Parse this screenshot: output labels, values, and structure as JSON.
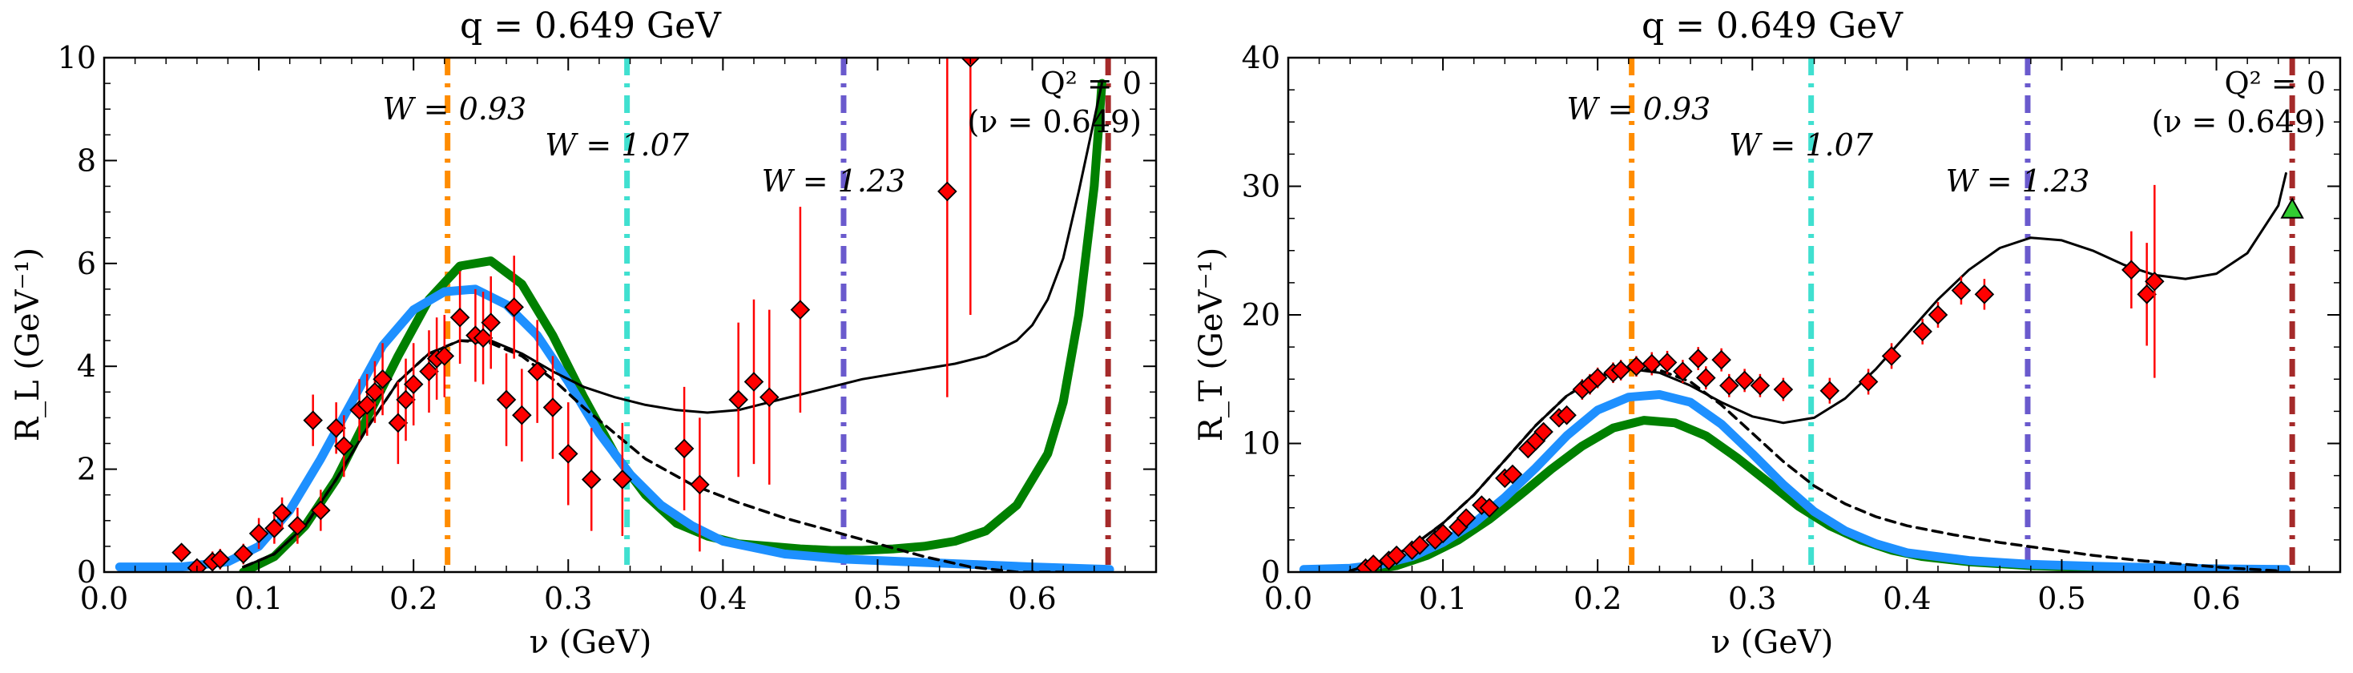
{
  "chart_data": [
    {
      "type": "line",
      "title": "q = 0.649 GeV",
      "xlabel": "ν (GeV)",
      "ylabel": "R_L (GeV⁻¹)",
      "xlim": [
        0.0,
        0.68
      ],
      "ylim": [
        0,
        10
      ],
      "xticks": [
        0.0,
        0.1,
        0.2,
        0.3,
        0.4,
        0.5,
        0.6
      ],
      "xtick_labels": [
        "0.0",
        "0.1",
        "0.2",
        "0.3",
        "0.4",
        "0.5",
        "0.6"
      ],
      "yticks": [
        0,
        2,
        4,
        6,
        8,
        10
      ],
      "ytick_labels": [
        "0",
        "2",
        "4",
        "6",
        "8",
        "10"
      ],
      "vlines": [
        {
          "x": 0.222,
          "color": "#ff8c00",
          "label": "W = 0.93",
          "label_x": 0.18,
          "label_y": 8.8
        },
        {
          "x": 0.338,
          "color": "#40e0d0",
          "label": "W = 1.07",
          "label_x": 0.285,
          "label_y": 8.1
        },
        {
          "x": 0.478,
          "color": "#6a5acd",
          "label": "W = 1.23",
          "label_x": 0.425,
          "label_y": 7.4
        },
        {
          "x": 0.649,
          "color": "#a52a2a",
          "label": "",
          "label_x": 0,
          "label_y": 0
        }
      ],
      "corner_label": [
        "Q² = 0",
        "(ν = 0.649)"
      ],
      "series": [
        {
          "style": "thin-black",
          "color": "#000000",
          "x": [
            0.09,
            0.11,
            0.13,
            0.15,
            0.17,
            0.19,
            0.21,
            0.23,
            0.25,
            0.27,
            0.29,
            0.31,
            0.33,
            0.35,
            0.37,
            0.39,
            0.41,
            0.43,
            0.45,
            0.47,
            0.49,
            0.51,
            0.53,
            0.55,
            0.57,
            0.59,
            0.6,
            0.61,
            0.62,
            0.63,
            0.64,
            0.645
          ],
          "y": [
            0.1,
            0.35,
            0.9,
            1.8,
            2.8,
            3.7,
            4.25,
            4.5,
            4.5,
            4.25,
            3.9,
            3.6,
            3.4,
            3.25,
            3.15,
            3.1,
            3.15,
            3.3,
            3.45,
            3.6,
            3.75,
            3.85,
            3.95,
            4.05,
            4.2,
            4.5,
            4.8,
            5.3,
            6.1,
            7.4,
            8.8,
            9.5
          ]
        },
        {
          "style": "dashed-black",
          "color": "#000000",
          "x": [
            0.09,
            0.11,
            0.13,
            0.15,
            0.17,
            0.19,
            0.21,
            0.23,
            0.25,
            0.27,
            0.29,
            0.31,
            0.33,
            0.35,
            0.38,
            0.41,
            0.44,
            0.47,
            0.5,
            0.53,
            0.56,
            0.59,
            0.62
          ],
          "y": [
            0.1,
            0.35,
            0.9,
            1.8,
            2.8,
            3.7,
            4.25,
            4.5,
            4.45,
            4.2,
            3.75,
            3.2,
            2.7,
            2.2,
            1.7,
            1.35,
            1.05,
            0.8,
            0.55,
            0.3,
            0.1,
            0.0,
            0.0
          ]
        },
        {
          "style": "thick-blue",
          "color": "#1e90ff",
          "x": [
            0.01,
            0.05,
            0.08,
            0.1,
            0.12,
            0.14,
            0.16,
            0.18,
            0.2,
            0.22,
            0.24,
            0.26,
            0.28,
            0.3,
            0.32,
            0.34,
            0.36,
            0.38,
            0.4,
            0.44,
            0.48,
            0.52,
            0.56,
            0.6,
            0.65
          ],
          "y": [
            0.1,
            0.1,
            0.2,
            0.5,
            1.2,
            2.2,
            3.3,
            4.4,
            5.1,
            5.45,
            5.5,
            5.2,
            4.6,
            3.7,
            2.7,
            1.9,
            1.3,
            0.9,
            0.6,
            0.35,
            0.25,
            0.2,
            0.15,
            0.1,
            0.05
          ]
        },
        {
          "style": "thick-green",
          "color": "#008000",
          "x": [
            0.09,
            0.11,
            0.13,
            0.15,
            0.17,
            0.19,
            0.21,
            0.23,
            0.25,
            0.27,
            0.29,
            0.31,
            0.33,
            0.35,
            0.37,
            0.39,
            0.41,
            0.43,
            0.45,
            0.47,
            0.49,
            0.51,
            0.53,
            0.55,
            0.57,
            0.59,
            0.61,
            0.62,
            0.63,
            0.64,
            0.645
          ],
          "y": [
            0.0,
            0.3,
            0.9,
            1.8,
            3.0,
            4.2,
            5.3,
            5.95,
            6.05,
            5.6,
            4.6,
            3.4,
            2.3,
            1.5,
            0.95,
            0.7,
            0.55,
            0.5,
            0.45,
            0.42,
            0.42,
            0.45,
            0.5,
            0.6,
            0.8,
            1.3,
            2.3,
            3.3,
            5.0,
            7.5,
            9.5
          ]
        }
      ],
      "points": [
        {
          "x": 0.05,
          "y": 0.38,
          "err": 0.15
        },
        {
          "x": 0.06,
          "y": 0.08,
          "err": 0.15
        },
        {
          "x": 0.07,
          "y": 0.2,
          "err": 0.2
        },
        {
          "x": 0.075,
          "y": 0.25,
          "err": 0.2
        },
        {
          "x": 0.09,
          "y": 0.35,
          "err": 0.2
        },
        {
          "x": 0.1,
          "y": 0.75,
          "err": 0.3
        },
        {
          "x": 0.11,
          "y": 0.85,
          "err": 0.3
        },
        {
          "x": 0.115,
          "y": 1.15,
          "err": 0.3
        },
        {
          "x": 0.125,
          "y": 0.9,
          "err": 0.35
        },
        {
          "x": 0.135,
          "y": 2.95,
          "err": 0.5
        },
        {
          "x": 0.14,
          "y": 1.2,
          "err": 0.4
        },
        {
          "x": 0.15,
          "y": 2.8,
          "err": 0.5
        },
        {
          "x": 0.155,
          "y": 2.45,
          "err": 0.6
        },
        {
          "x": 0.165,
          "y": 3.15,
          "err": 0.6
        },
        {
          "x": 0.17,
          "y": 3.25,
          "err": 0.6
        },
        {
          "x": 0.175,
          "y": 3.5,
          "err": 0.6
        },
        {
          "x": 0.18,
          "y": 3.75,
          "err": 0.7
        },
        {
          "x": 0.19,
          "y": 2.9,
          "err": 0.8
        },
        {
          "x": 0.195,
          "y": 3.35,
          "err": 0.8
        },
        {
          "x": 0.2,
          "y": 3.65,
          "err": 0.8
        },
        {
          "x": 0.21,
          "y": 3.9,
          "err": 0.8
        },
        {
          "x": 0.215,
          "y": 4.15,
          "err": 0.8
        },
        {
          "x": 0.22,
          "y": 4.2,
          "err": 0.8
        },
        {
          "x": 0.23,
          "y": 4.95,
          "err": 0.9
        },
        {
          "x": 0.24,
          "y": 4.6,
          "err": 0.9
        },
        {
          "x": 0.245,
          "y": 4.55,
          "err": 0.9
        },
        {
          "x": 0.25,
          "y": 4.85,
          "err": 0.9
        },
        {
          "x": 0.26,
          "y": 3.35,
          "err": 0.9
        },
        {
          "x": 0.265,
          "y": 5.15,
          "err": 1.0
        },
        {
          "x": 0.27,
          "y": 3.05,
          "err": 0.9
        },
        {
          "x": 0.28,
          "y": 3.9,
          "err": 1.0
        },
        {
          "x": 0.29,
          "y": 3.2,
          "err": 1.0
        },
        {
          "x": 0.3,
          "y": 2.3,
          "err": 1.0
        },
        {
          "x": 0.315,
          "y": 1.8,
          "err": 1.0
        },
        {
          "x": 0.335,
          "y": 1.8,
          "err": 1.1
        },
        {
          "x": 0.375,
          "y": 2.4,
          "err": 1.2
        },
        {
          "x": 0.385,
          "y": 1.7,
          "err": 1.3
        },
        {
          "x": 0.41,
          "y": 3.35,
          "err": 1.5
        },
        {
          "x": 0.42,
          "y": 3.7,
          "err": 1.6
        },
        {
          "x": 0.43,
          "y": 3.4,
          "err": 1.7
        },
        {
          "x": 0.45,
          "y": 5.1,
          "err": 2.0
        },
        {
          "x": 0.545,
          "y": 7.4,
          "err": 4.0
        },
        {
          "x": 0.56,
          "y": 10.0,
          "err": 5.0
        }
      ]
    },
    {
      "type": "line",
      "title": "q = 0.649 GeV",
      "xlabel": "ν (GeV)",
      "ylabel": "R_T (GeV⁻¹)",
      "xlim": [
        0.0,
        0.68
      ],
      "ylim": [
        0,
        40
      ],
      "xticks": [
        0.0,
        0.1,
        0.2,
        0.3,
        0.4,
        0.5,
        0.6
      ],
      "xtick_labels": [
        "0.0",
        "0.1",
        "0.2",
        "0.3",
        "0.4",
        "0.5",
        "0.6"
      ],
      "yticks": [
        0,
        10,
        20,
        30,
        40
      ],
      "ytick_labels": [
        "0",
        "10",
        "20",
        "30",
        "40"
      ],
      "vlines": [
        {
          "x": 0.222,
          "color": "#ff8c00",
          "label": "W = 0.93",
          "label_x": 0.18,
          "label_y": 35.2
        },
        {
          "x": 0.338,
          "color": "#40e0d0",
          "label": "W = 1.07",
          "label_x": 0.285,
          "label_y": 32.4
        },
        {
          "x": 0.478,
          "color": "#6a5acd",
          "label": "W = 1.23",
          "label_x": 0.425,
          "label_y": 29.6
        },
        {
          "x": 0.649,
          "color": "#a52a2a",
          "label": "",
          "label_x": 0,
          "label_y": 0
        }
      ],
      "corner_label": [
        "Q² = 0",
        "(ν = 0.649)"
      ],
      "series": [
        {
          "style": "thin-black",
          "color": "#000000",
          "x": [
            0.04,
            0.06,
            0.08,
            0.1,
            0.12,
            0.14,
            0.16,
            0.18,
            0.2,
            0.22,
            0.24,
            0.26,
            0.28,
            0.3,
            0.32,
            0.34,
            0.36,
            0.38,
            0.4,
            0.42,
            0.44,
            0.46,
            0.48,
            0.5,
            0.52,
            0.54,
            0.56,
            0.58,
            0.6,
            0.62,
            0.64,
            0.645
          ],
          "y": [
            0.1,
            0.8,
            2.0,
            3.8,
            6.0,
            8.7,
            11.4,
            13.7,
            15.2,
            15.8,
            15.5,
            14.5,
            13.2,
            12.1,
            11.6,
            12.0,
            13.5,
            15.8,
            18.5,
            21.2,
            23.5,
            25.2,
            26.0,
            25.8,
            25.0,
            23.9,
            23.1,
            22.8,
            23.2,
            24.8,
            28.5,
            31.0
          ]
        },
        {
          "style": "dashed-black",
          "color": "#000000",
          "x": [
            0.04,
            0.06,
            0.08,
            0.1,
            0.12,
            0.14,
            0.16,
            0.18,
            0.2,
            0.22,
            0.24,
            0.26,
            0.28,
            0.3,
            0.32,
            0.34,
            0.36,
            0.38,
            0.4,
            0.43,
            0.46,
            0.49,
            0.52,
            0.55,
            0.58,
            0.61,
            0.64
          ],
          "y": [
            0.1,
            0.8,
            2.0,
            3.8,
            6.0,
            8.7,
            11.4,
            13.7,
            15.2,
            15.8,
            15.7,
            14.8,
            13.0,
            10.8,
            8.6,
            6.7,
            5.3,
            4.3,
            3.6,
            2.9,
            2.3,
            1.8,
            1.3,
            0.9,
            0.6,
            0.3,
            0.1
          ]
        },
        {
          "style": "thick-blue",
          "color": "#1e90ff",
          "x": [
            0.01,
            0.04,
            0.06,
            0.08,
            0.1,
            0.12,
            0.14,
            0.16,
            0.18,
            0.2,
            0.22,
            0.24,
            0.26,
            0.28,
            0.3,
            0.32,
            0.34,
            0.36,
            0.38,
            0.4,
            0.44,
            0.48,
            0.52,
            0.56,
            0.6,
            0.645
          ],
          "y": [
            0.2,
            0.3,
            0.6,
            1.2,
            2.3,
            3.8,
            5.8,
            8.1,
            10.6,
            12.6,
            13.6,
            13.8,
            13.2,
            11.5,
            9.2,
            6.8,
            4.7,
            3.2,
            2.2,
            1.5,
            0.9,
            0.6,
            0.45,
            0.35,
            0.25,
            0.2
          ]
        },
        {
          "style": "thick-green",
          "color": "#008000",
          "x": [
            0.05,
            0.07,
            0.09,
            0.11,
            0.13,
            0.15,
            0.17,
            0.19,
            0.21,
            0.23,
            0.25,
            0.27,
            0.29,
            0.31,
            0.33,
            0.35,
            0.37,
            0.39,
            0.41,
            0.44,
            0.48,
            0.52,
            0.56,
            0.6,
            0.645
          ],
          "y": [
            0.1,
            0.5,
            1.3,
            2.5,
            4.1,
            6.0,
            8.0,
            9.8,
            11.2,
            11.8,
            11.6,
            10.6,
            8.9,
            7.0,
            5.1,
            3.6,
            2.5,
            1.7,
            1.2,
            0.8,
            0.5,
            0.35,
            0.25,
            0.2,
            0.15
          ]
        }
      ],
      "points": [
        {
          "x": 0.05,
          "y": 0.3,
          "err": 0.3
        },
        {
          "x": 0.055,
          "y": 0.6,
          "err": 0.3
        },
        {
          "x": 0.065,
          "y": 0.9,
          "err": 0.3
        },
        {
          "x": 0.07,
          "y": 1.3,
          "err": 0.4
        },
        {
          "x": 0.08,
          "y": 1.7,
          "err": 0.4
        },
        {
          "x": 0.085,
          "y": 2.1,
          "err": 0.4
        },
        {
          "x": 0.095,
          "y": 2.5,
          "err": 0.5
        },
        {
          "x": 0.1,
          "y": 3.0,
          "err": 0.5
        },
        {
          "x": 0.11,
          "y": 3.5,
          "err": 0.5
        },
        {
          "x": 0.115,
          "y": 4.2,
          "err": 0.5
        },
        {
          "x": 0.125,
          "y": 5.2,
          "err": 0.6
        },
        {
          "x": 0.13,
          "y": 5.0,
          "err": 0.6
        },
        {
          "x": 0.14,
          "y": 7.3,
          "err": 0.6
        },
        {
          "x": 0.145,
          "y": 7.6,
          "err": 0.6
        },
        {
          "x": 0.155,
          "y": 9.6,
          "err": 0.7
        },
        {
          "x": 0.16,
          "y": 10.2,
          "err": 0.7
        },
        {
          "x": 0.165,
          "y": 10.9,
          "err": 0.7
        },
        {
          "x": 0.175,
          "y": 12.0,
          "err": 0.7
        },
        {
          "x": 0.18,
          "y": 12.2,
          "err": 0.7
        },
        {
          "x": 0.19,
          "y": 14.2,
          "err": 0.8
        },
        {
          "x": 0.195,
          "y": 14.6,
          "err": 0.8
        },
        {
          "x": 0.2,
          "y": 15.1,
          "err": 0.8
        },
        {
          "x": 0.21,
          "y": 15.5,
          "err": 0.8
        },
        {
          "x": 0.215,
          "y": 15.7,
          "err": 0.8
        },
        {
          "x": 0.225,
          "y": 16.0,
          "err": 0.8
        },
        {
          "x": 0.235,
          "y": 16.2,
          "err": 0.9
        },
        {
          "x": 0.245,
          "y": 16.3,
          "err": 0.9
        },
        {
          "x": 0.255,
          "y": 15.6,
          "err": 0.9
        },
        {
          "x": 0.265,
          "y": 16.6,
          "err": 0.9
        },
        {
          "x": 0.27,
          "y": 15.1,
          "err": 0.9
        },
        {
          "x": 0.28,
          "y": 16.5,
          "err": 0.9
        },
        {
          "x": 0.285,
          "y": 14.5,
          "err": 0.9
        },
        {
          "x": 0.295,
          "y": 14.9,
          "err": 0.9
        },
        {
          "x": 0.305,
          "y": 14.5,
          "err": 0.9
        },
        {
          "x": 0.32,
          "y": 14.2,
          "err": 0.9
        },
        {
          "x": 0.35,
          "y": 14.1,
          "err": 1.0
        },
        {
          "x": 0.375,
          "y": 14.8,
          "err": 1.0
        },
        {
          "x": 0.39,
          "y": 16.8,
          "err": 1.0
        },
        {
          "x": 0.41,
          "y": 18.7,
          "err": 1.0
        },
        {
          "x": 0.42,
          "y": 20.0,
          "err": 1.0
        },
        {
          "x": 0.435,
          "y": 21.9,
          "err": 1.1
        },
        {
          "x": 0.45,
          "y": 21.6,
          "err": 1.2
        },
        {
          "x": 0.545,
          "y": 23.5,
          "err": 3.0
        },
        {
          "x": 0.555,
          "y": 21.6,
          "err": 4.0
        },
        {
          "x": 0.56,
          "y": 22.6,
          "err": 7.5
        }
      ],
      "marker_point": {
        "x": 0.649,
        "y": 28.2,
        "color": "#32cd32"
      }
    }
  ]
}
